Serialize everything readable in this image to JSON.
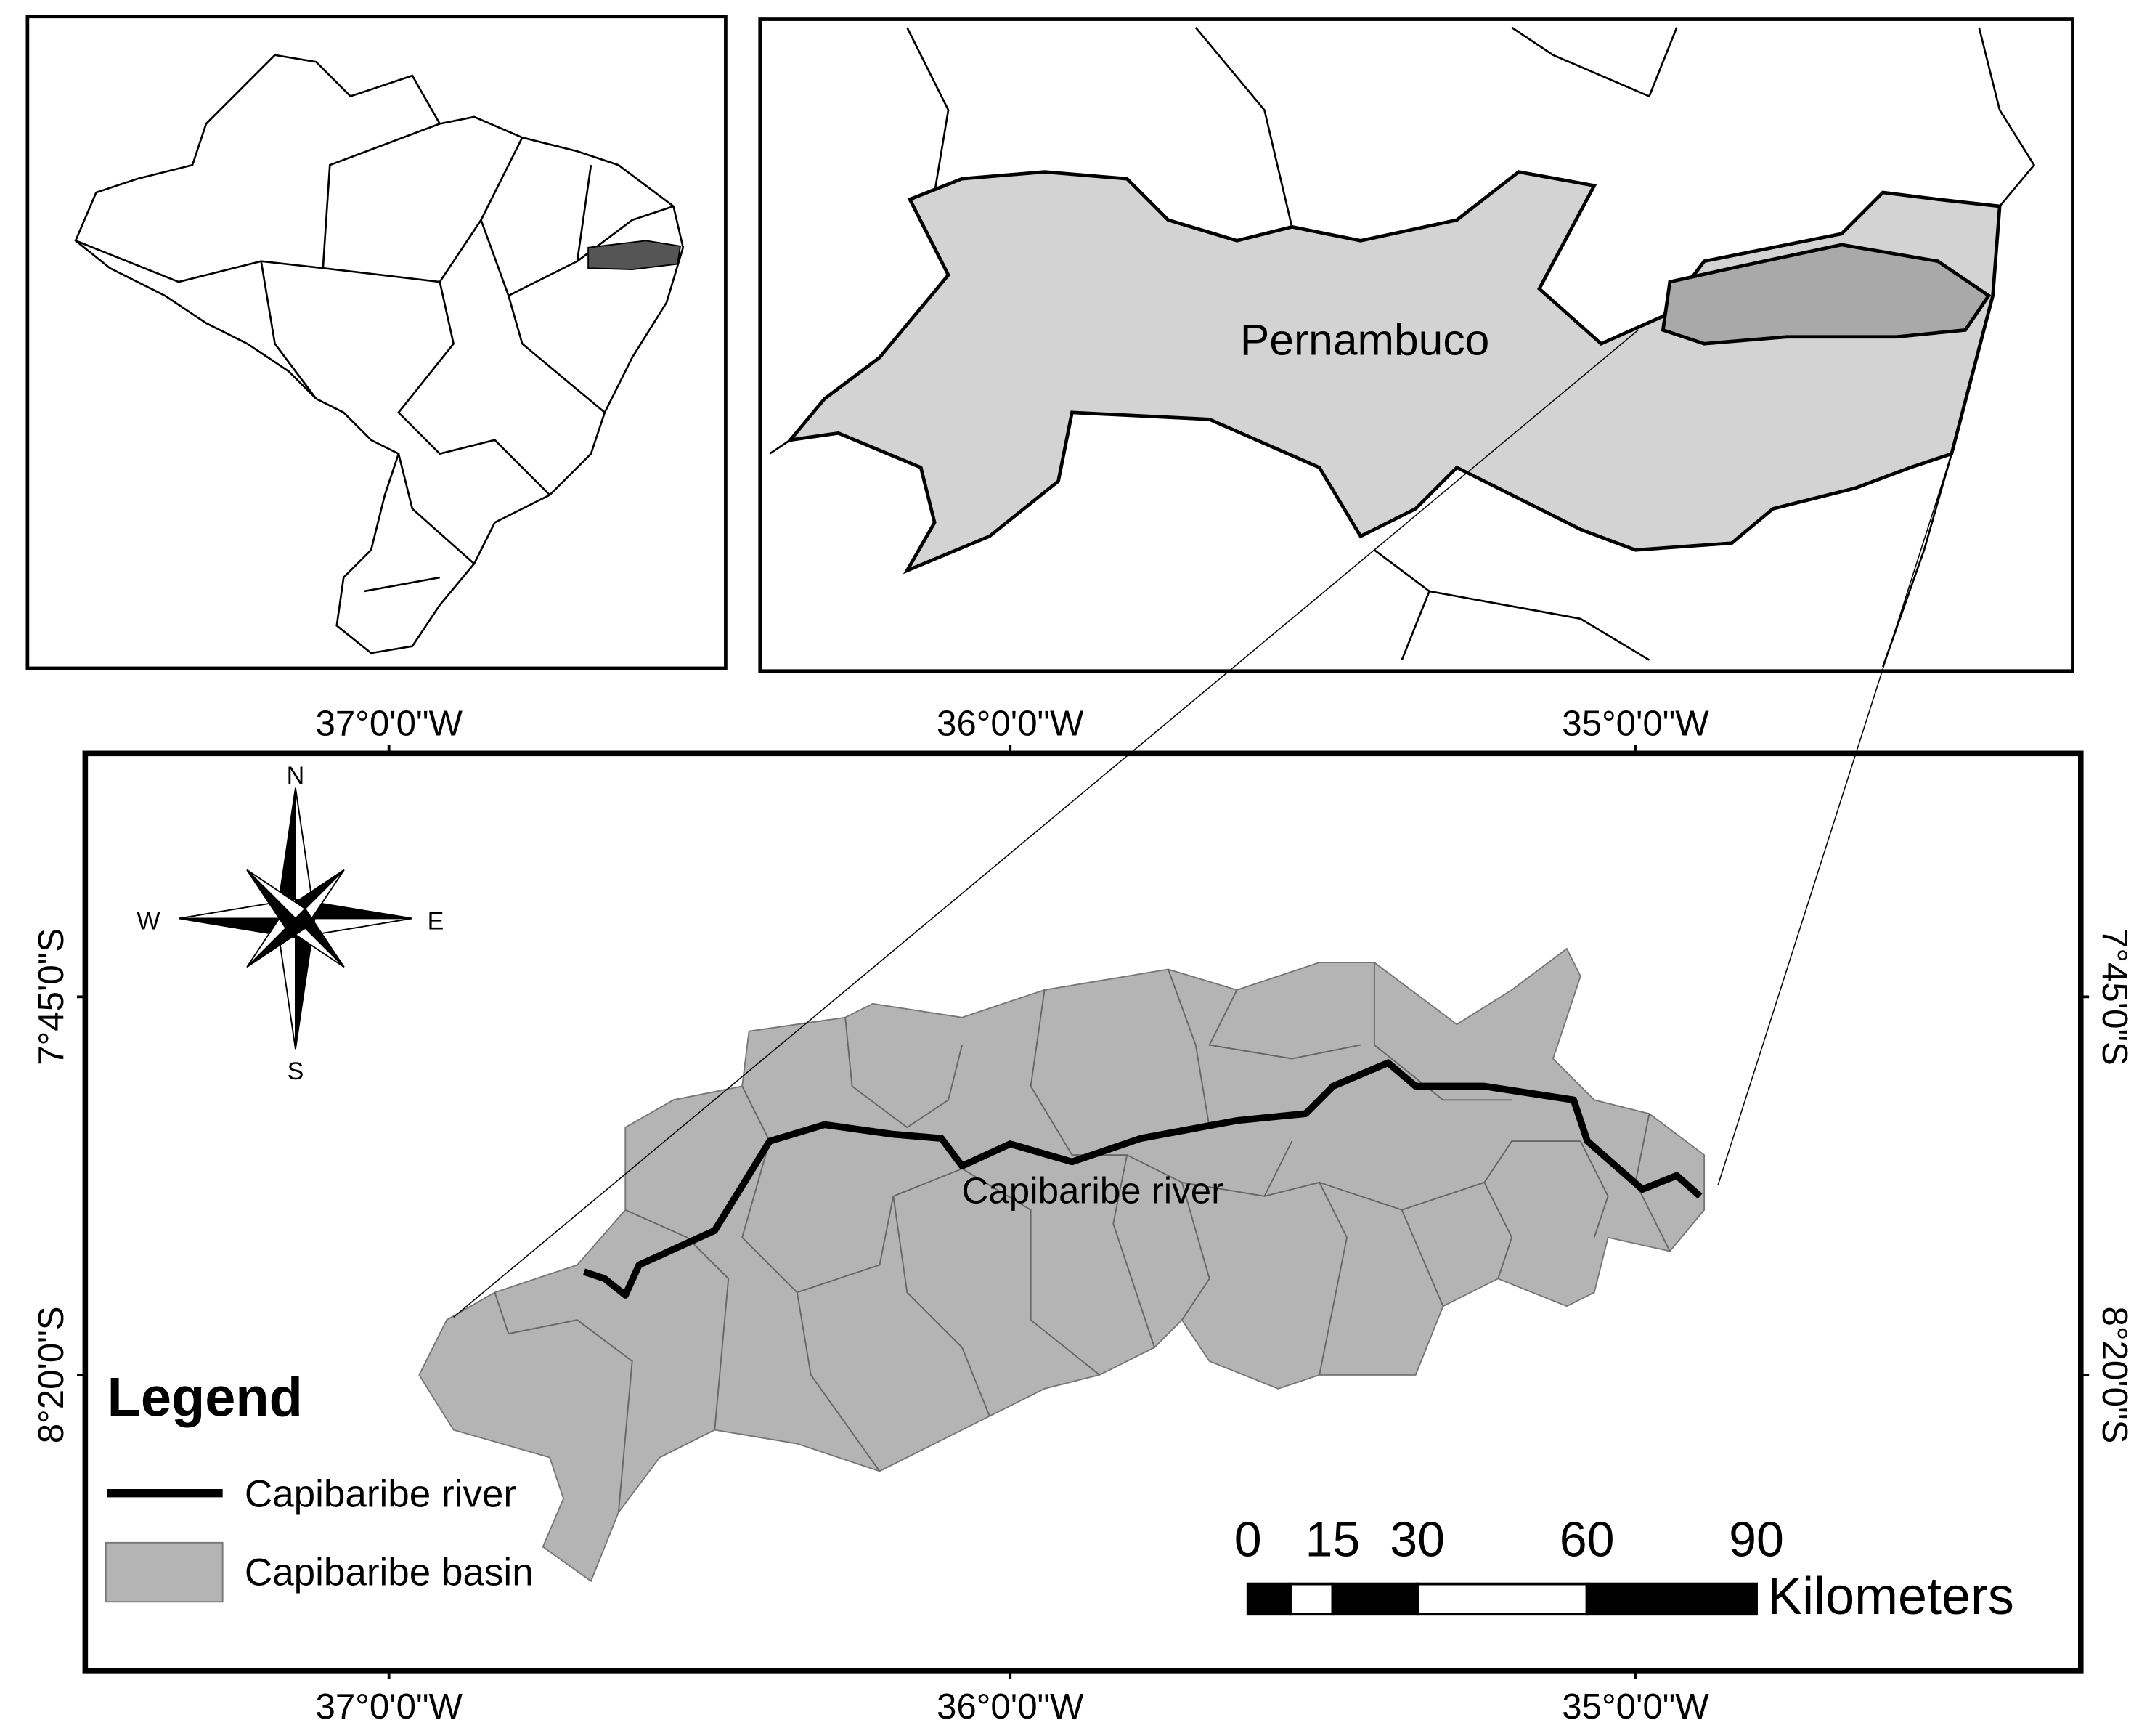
{
  "inset_state": {
    "label": "Pernambuco"
  },
  "main_map": {
    "river_label": "Capibaribe river",
    "longitudes": [
      "37°0'0\"W",
      "36°0'0\"W",
      "35°0'0\"W"
    ],
    "latitudes": [
      "7°45'0\"S",
      "8°20'0\"S"
    ],
    "compass": {
      "n": "N",
      "s": "S",
      "e": "E",
      "w": "W"
    },
    "legend": {
      "title": "Legend",
      "items": [
        "Capibaribe river",
        "Capibaribe basin"
      ]
    },
    "scale_bar": {
      "ticks": [
        0,
        15,
        30,
        60,
        90
      ],
      "unit": "Kilometers"
    }
  }
}
